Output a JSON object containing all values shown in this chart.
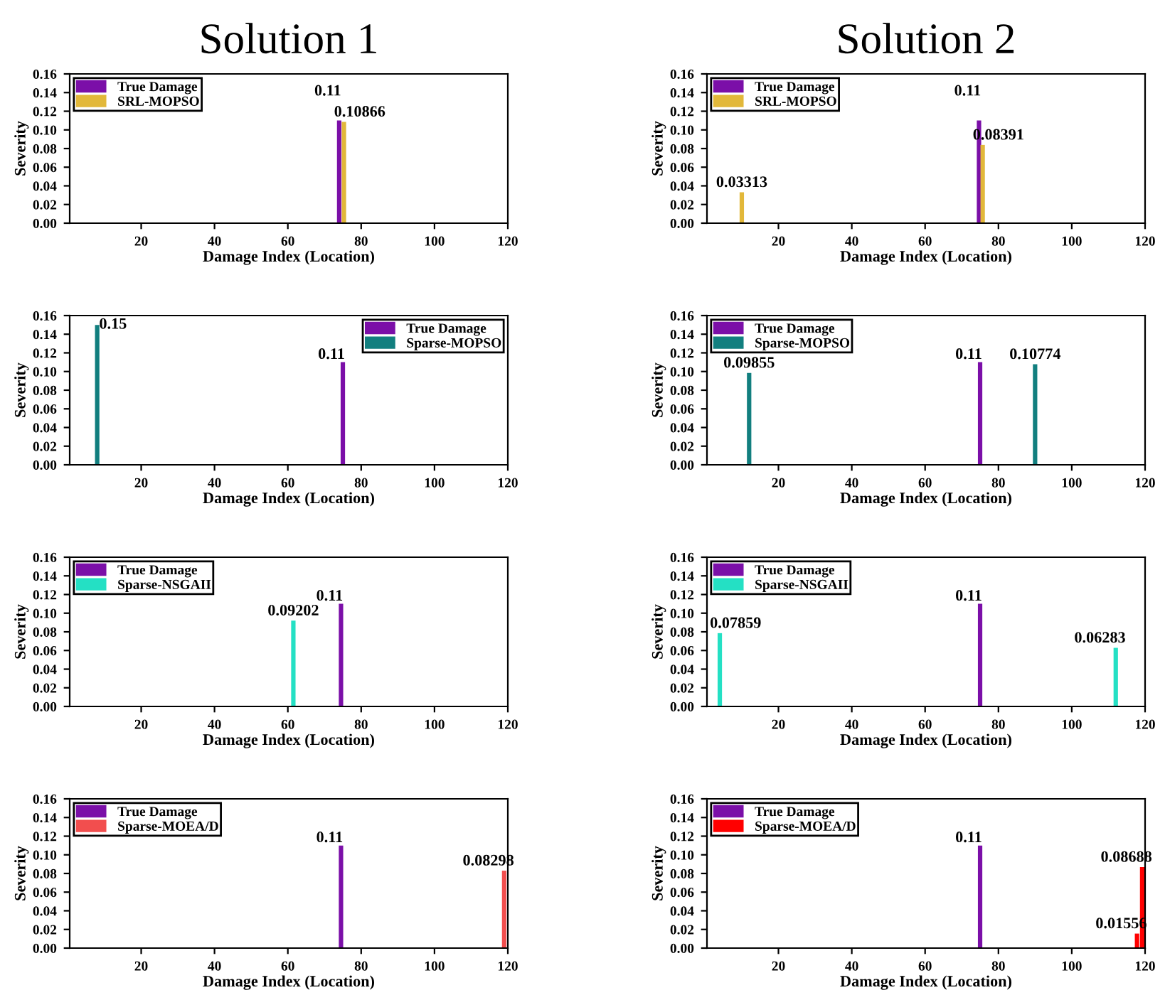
{
  "chart_data": [
    {
      "type": "bar",
      "title": "Solution 1",
      "xlabel": "Damage Index (Location)",
      "ylabel": "Severity",
      "legend": "top left",
      "data_labels": true,
      "grid": false,
      "xlim": [
        0.5,
        120
      ],
      "xticks": [
        20,
        40,
        60,
        80,
        100,
        120
      ],
      "ylim": [
        0,
        0.16
      ],
      "yticks": [
        {
          "value": 0,
          "label": "0.00"
        },
        {
          "value": 0.02,
          "label": "0.02"
        },
        {
          "value": 0.04,
          "label": "0.04"
        },
        {
          "value": 0.06,
          "label": "0.06"
        },
        {
          "value": 0.08,
          "label": "0.08"
        },
        {
          "value": 0.1,
          "label": "0.10"
        },
        {
          "value": 0.12,
          "label": "0.12"
        },
        {
          "value": 0.14,
          "label": "0.14"
        },
        {
          "value": 0.16,
          "label": "0.16"
        }
      ],
      "series": [
        {
          "name": "True Damage",
          "color": "#7b0fa8",
          "x": [
            74
          ],
          "values": [
            0.11
          ]
        },
        {
          "name": "SRL-MOPSO",
          "color": "#e2b83a",
          "x": [
            75.3
          ],
          "values": [
            0.10866
          ]
        }
      ]
    },
    {
      "type": "bar",
      "title": "Solution 2",
      "xlabel": "Damage Index (Location)",
      "ylabel": "Severity",
      "legend": "top left",
      "data_labels": true,
      "grid": false,
      "xlim": [
        0.5,
        120
      ],
      "xticks": [
        20,
        40,
        60,
        80,
        100,
        120
      ],
      "ylim": [
        0,
        0.16
      ],
      "yticks": [
        {
          "value": 0,
          "label": "0.00"
        },
        {
          "value": 0.02,
          "label": "0.02"
        },
        {
          "value": 0.04,
          "label": "0.04"
        },
        {
          "value": 0.06,
          "label": "0.06"
        },
        {
          "value": 0.08,
          "label": "0.08"
        },
        {
          "value": 0.1,
          "label": "0.10"
        },
        {
          "value": 0.12,
          "label": "0.12"
        },
        {
          "value": 0.14,
          "label": "0.14"
        },
        {
          "value": 0.16,
          "label": "0.16"
        }
      ],
      "series": [
        {
          "name": "True Damage",
          "color": "#7b0fa8",
          "x": [
            74.7
          ],
          "values": [
            0.11
          ]
        },
        {
          "name": "SRL-MOPSO",
          "color": "#e2b83a",
          "x": [
            10,
            75.7
          ],
          "values": [
            0.03313,
            0.08391
          ]
        }
      ]
    },
    {
      "type": "bar",
      "xlabel": "Damage Index (Location)",
      "ylabel": "Severity",
      "legend": "top right",
      "data_labels": true,
      "grid": false,
      "xlim": [
        0.5,
        120
      ],
      "xticks": [
        20,
        40,
        60,
        80,
        100,
        120
      ],
      "ylim": [
        0,
        0.16
      ],
      "yticks": [
        {
          "value": 0,
          "label": "0.00"
        },
        {
          "value": 0.02,
          "label": "0.02"
        },
        {
          "value": 0.04,
          "label": "0.04"
        },
        {
          "value": 0.06,
          "label": "0.06"
        },
        {
          "value": 0.08,
          "label": "0.08"
        },
        {
          "value": 0.1,
          "label": "0.10"
        },
        {
          "value": 0.12,
          "label": "0.12"
        },
        {
          "value": 0.14,
          "label": "0.14"
        },
        {
          "value": 0.16,
          "label": "0.16"
        }
      ],
      "series": [
        {
          "name": "True Damage",
          "color": "#7b0fa8",
          "x": [
            75
          ],
          "values": [
            0.11
          ]
        },
        {
          "name": "Sparse-MOPSO",
          "color": "#127f7f",
          "x": [
            8
          ],
          "values": [
            0.15
          ]
        }
      ]
    },
    {
      "type": "bar",
      "xlabel": "Damage Index (Location)",
      "ylabel": "Severity",
      "legend": "top left",
      "data_labels": true,
      "grid": false,
      "xlim": [
        0.5,
        120
      ],
      "xticks": [
        20,
        40,
        60,
        80,
        100,
        120
      ],
      "ylim": [
        0,
        0.16
      ],
      "yticks": [
        {
          "value": 0,
          "label": "0.00"
        },
        {
          "value": 0.02,
          "label": "0.02"
        },
        {
          "value": 0.04,
          "label": "0.04"
        },
        {
          "value": 0.06,
          "label": "0.06"
        },
        {
          "value": 0.08,
          "label": "0.08"
        },
        {
          "value": 0.1,
          "label": "0.10"
        },
        {
          "value": 0.12,
          "label": "0.12"
        },
        {
          "value": 0.14,
          "label": "0.14"
        },
        {
          "value": 0.16,
          "label": "0.16"
        }
      ],
      "series": [
        {
          "name": "True Damage",
          "color": "#7b0fa8",
          "x": [
            75
          ],
          "values": [
            0.11
          ]
        },
        {
          "name": "Sparse-MOPSO",
          "color": "#127f7f",
          "x": [
            12,
            90
          ],
          "values": [
            0.09855,
            0.10774
          ]
        }
      ]
    },
    {
      "type": "bar",
      "xlabel": "Damage Index (Location)",
      "ylabel": "Severity",
      "legend": "top left",
      "data_labels": true,
      "grid": false,
      "xlim": [
        0.5,
        120
      ],
      "xticks": [
        20,
        40,
        60,
        80,
        100,
        120
      ],
      "ylim": [
        0,
        0.16
      ],
      "yticks": [
        {
          "value": 0,
          "label": "0.00"
        },
        {
          "value": 0.02,
          "label": "0.02"
        },
        {
          "value": 0.04,
          "label": "0.04"
        },
        {
          "value": 0.06,
          "label": "0.06"
        },
        {
          "value": 0.08,
          "label": "0.08"
        },
        {
          "value": 0.1,
          "label": "0.10"
        },
        {
          "value": 0.12,
          "label": "0.12"
        },
        {
          "value": 0.14,
          "label": "0.14"
        },
        {
          "value": 0.16,
          "label": "0.16"
        }
      ],
      "series": [
        {
          "name": "True Damage",
          "color": "#7b0fa8",
          "x": [
            74.5
          ],
          "values": [
            0.11
          ]
        },
        {
          "name": "Sparse-NSGAII",
          "color": "#24e0c4",
          "x": [
            61.5
          ],
          "values": [
            0.09202
          ]
        }
      ]
    },
    {
      "type": "bar",
      "xlabel": "Damage Index (Location)",
      "ylabel": "Severity",
      "legend": "top left",
      "data_labels": true,
      "grid": false,
      "xlim": [
        0.5,
        120
      ],
      "xticks": [
        20,
        40,
        60,
        80,
        100,
        120
      ],
      "ylim": [
        0,
        0.16
      ],
      "yticks": [
        {
          "value": 0,
          "label": "0.00"
        },
        {
          "value": 0.02,
          "label": "0.02"
        },
        {
          "value": 0.04,
          "label": "0.04"
        },
        {
          "value": 0.06,
          "label": "0.06"
        },
        {
          "value": 0.08,
          "label": "0.08"
        },
        {
          "value": 0.1,
          "label": "0.10"
        },
        {
          "value": 0.12,
          "label": "0.12"
        },
        {
          "value": 0.14,
          "label": "0.14"
        },
        {
          "value": 0.16,
          "label": "0.16"
        }
      ],
      "series": [
        {
          "name": "True Damage",
          "color": "#7b0fa8",
          "x": [
            75
          ],
          "values": [
            0.11
          ]
        },
        {
          "name": "Sparse-NSGAII",
          "color": "#24e0c4",
          "x": [
            4,
            112
          ],
          "values": [
            0.07859,
            0.06283
          ]
        }
      ]
    },
    {
      "type": "bar",
      "xlabel": "Damage Index (Location)",
      "ylabel": "Severity",
      "legend": "top left",
      "data_labels": true,
      "grid": false,
      "xlim": [
        0.5,
        120
      ],
      "xticks": [
        20,
        40,
        60,
        80,
        100,
        120
      ],
      "ylim": [
        0,
        0.16
      ],
      "yticks": [
        {
          "value": 0,
          "label": "0.00"
        },
        {
          "value": 0.02,
          "label": "0.02"
        },
        {
          "value": 0.04,
          "label": "0.04"
        },
        {
          "value": 0.06,
          "label": "0.06"
        },
        {
          "value": 0.08,
          "label": "0.08"
        },
        {
          "value": 0.1,
          "label": "0.10"
        },
        {
          "value": 0.12,
          "label": "0.12"
        },
        {
          "value": 0.14,
          "label": "0.14"
        },
        {
          "value": 0.16,
          "label": "0.16"
        }
      ],
      "series": [
        {
          "name": "True Damage",
          "color": "#7b0fa8",
          "x": [
            74.5
          ],
          "values": [
            0.11
          ]
        },
        {
          "name": "Sparse-MOEA/D",
          "color": "#f24e4e",
          "x": [
            119
          ],
          "values": [
            0.08298
          ]
        }
      ]
    },
    {
      "type": "bar",
      "xlabel": "Damage Index (Location)",
      "ylabel": "Severity",
      "legend": "top left",
      "data_labels": true,
      "grid": false,
      "xlim": [
        0.5,
        120
      ],
      "xticks": [
        20,
        40,
        60,
        80,
        100,
        120
      ],
      "ylim": [
        0,
        0.16
      ],
      "yticks": [
        {
          "value": 0,
          "label": "0.00"
        },
        {
          "value": 0.02,
          "label": "0.02"
        },
        {
          "value": 0.04,
          "label": "0.04"
        },
        {
          "value": 0.06,
          "label": "0.06"
        },
        {
          "value": 0.08,
          "label": "0.08"
        },
        {
          "value": 0.1,
          "label": "0.10"
        },
        {
          "value": 0.12,
          "label": "0.12"
        },
        {
          "value": 0.14,
          "label": "0.14"
        },
        {
          "value": 0.16,
          "label": "0.16"
        }
      ],
      "series": [
        {
          "name": "True Damage",
          "color": "#7b0fa8",
          "x": [
            75
          ],
          "values": [
            0.11
          ]
        },
        {
          "name": "Sparse-MOEA/D",
          "color": "#ff0000",
          "x": [
            117.8,
            119.2
          ],
          "values": [
            0.01556,
            0.08688
          ]
        }
      ]
    }
  ]
}
